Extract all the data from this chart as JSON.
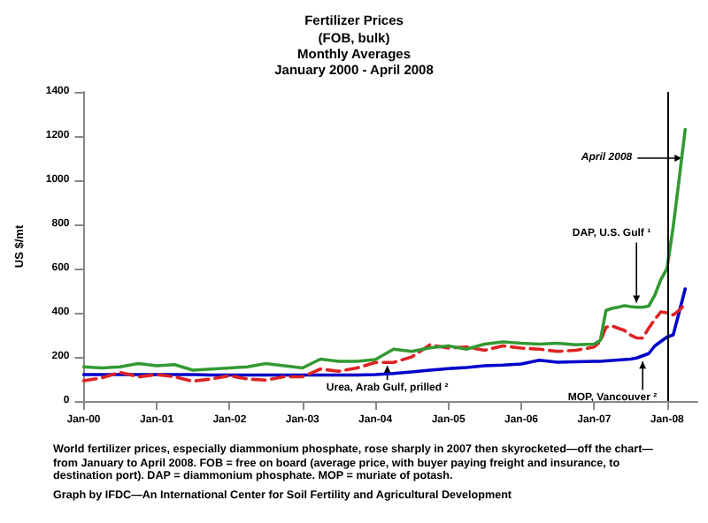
{
  "chart_data": {
    "type": "line",
    "title": "Fertilizer Prices",
    "subtitle": "(FOB, bulk)\nMonthly Averages\nJanuary 2000 - April 2008",
    "ylabel": "US $/mt",
    "x": [
      "2000-01",
      "2000-04",
      "2000-07",
      "2000-10",
      "2001-01",
      "2001-04",
      "2001-07",
      "2001-10",
      "2002-01",
      "2002-04",
      "2002-07",
      "2002-10",
      "2003-01",
      "2003-04",
      "2003-07",
      "2003-10",
      "2004-01",
      "2004-04",
      "2004-07",
      "2004-10",
      "2005-01",
      "2005-04",
      "2005-07",
      "2005-10",
      "2006-01",
      "2006-04",
      "2006-07",
      "2006-10",
      "2007-01",
      "2007-02",
      "2007-03",
      "2007-04",
      "2007-05",
      "2007-06",
      "2007-07",
      "2007-08",
      "2007-09",
      "2007-10",
      "2007-11",
      "2007-12",
      "2008-01",
      "2008-02",
      "2008-03",
      "2008-04"
    ],
    "series": [
      {
        "color": "#339933",
        "line_style": "solid",
        "values": [
          155,
          150,
          155,
          170,
          160,
          165,
          140,
          145,
          150,
          155,
          170,
          160,
          150,
          190,
          180,
          180,
          188,
          235,
          225,
          241,
          250,
          235,
          258,
          268,
          262,
          258,
          262,
          255,
          258,
          275,
          410,
          420,
          425,
          432,
          428,
          425,
          425,
          430,
          480,
          550,
          600,
          790,
          1000,
          1230
        ]
      },
      {
        "color": "#dd2222",
        "line_style": "dashed",
        "values": [
          92,
          105,
          130,
          110,
          120,
          110,
          90,
          100,
          115,
          100,
          95,
          110,
          110,
          145,
          135,
          150,
          175,
          175,
          200,
          255,
          240,
          245,
          230,
          250,
          240,
          235,
          225,
          230,
          245,
          270,
          334,
          340,
          330,
          320,
          300,
          286,
          285,
          330,
          370,
          404,
          400,
          390,
          410,
          440
        ]
      },
      {
        "color": "#0000cc",
        "line_style": "solid",
        "values": [
          120,
          120,
          120,
          120,
          120,
          120,
          120,
          118,
          118,
          118,
          118,
          118,
          118,
          118,
          118,
          118,
          120,
          125,
          132,
          140,
          147,
          152,
          160,
          163,
          168,
          185,
          176,
          178,
          180,
          180,
          182,
          184,
          186,
          188,
          190,
          195,
          205,
          215,
          250,
          270,
          290,
          300,
          400,
          508
        ]
      }
    ],
    "xlim": [
      "2000-01",
      "2008-06"
    ],
    "xticks": [
      {
        "value": "2000-01",
        "label": "Jan-00"
      },
      {
        "value": "2001-01",
        "label": "Jan-01"
      },
      {
        "value": "2002-01",
        "label": "Jan-02"
      },
      {
        "value": "2003-01",
        "label": "Jan-03"
      },
      {
        "value": "2004-01",
        "label": "Jan-04"
      },
      {
        "value": "2005-01",
        "label": "Jan-05"
      },
      {
        "value": "2006-01",
        "label": "Jan-06"
      },
      {
        "value": "2007-01",
        "label": "Jan-07"
      },
      {
        "value": "2008-01",
        "label": "Jan-08"
      }
    ],
    "ylim": [
      0,
      1400
    ],
    "yticks": [
      0,
      200,
      400,
      600,
      800,
      1000,
      1200,
      1400
    ],
    "grid": false,
    "marker": "none",
    "ref_lines": [
      {
        "axis": "x",
        "value": "2008-01",
        "color": "#000000",
        "line_style": "solid"
      }
    ],
    "annotations": [
      {
        "text": "April 2008",
        "x": "2008-04",
        "y": 1100
      },
      {
        "text": "DAP, U.S. Gulf ¹",
        "x": "2007-08",
        "y": 430
      },
      {
        "text": "MOP, Vancouver ²",
        "x": "2007-09",
        "y": 195
      },
      {
        "text": "Urea, Arab Gulf, prilled ²",
        "x": "2004-03",
        "y": 175
      },
      "World fertilizer prices, especially diammonium phosphate, rose sharply in 2007 then skyrocketed—off the chart—from January to April 2008. FOB = free on board (average price, with buyer paying freight and insurance, to destination port). DAP = diammonium phosphate.  MOP = muriate of potash.",
      "Graph by IFDC—An International Center for Soil Fertility and Agricultural Development"
    ]
  }
}
